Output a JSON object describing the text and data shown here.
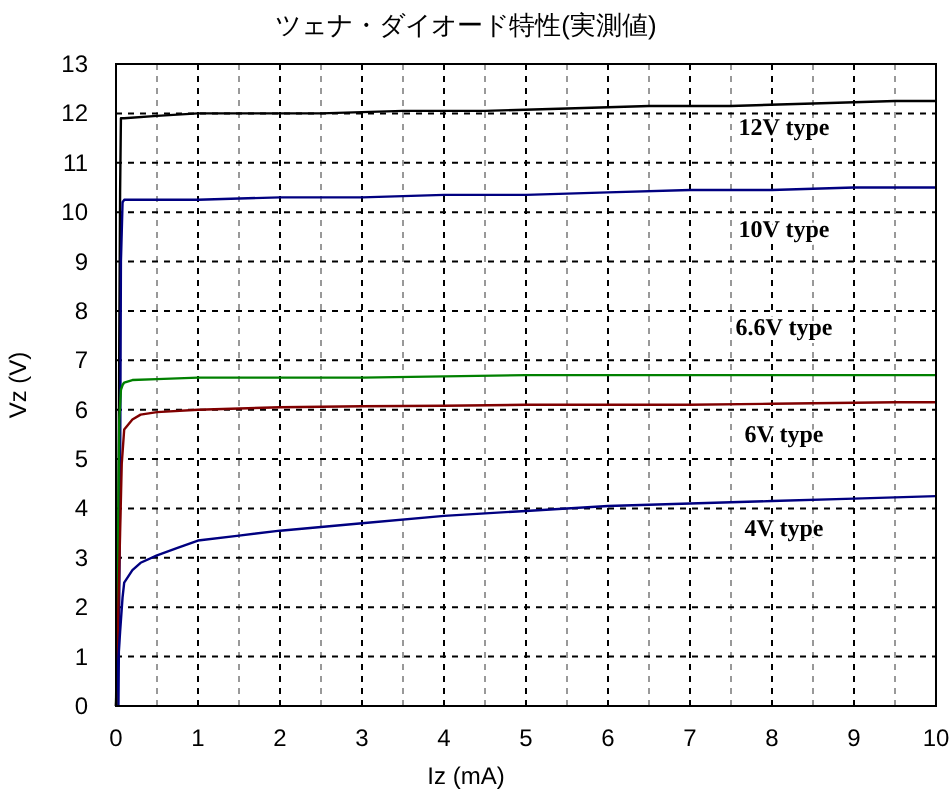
{
  "chart_data": {
    "type": "line",
    "title": "ツェナ・ダイオード特性(実測値)",
    "xlabel": "Iz (mA)",
    "ylabel": "Vz (V)",
    "xlim": [
      0,
      10
    ],
    "ylim": [
      0,
      13
    ],
    "xticks": [
      0,
      1,
      2,
      3,
      4,
      5,
      6,
      7,
      8,
      9,
      10
    ],
    "yticks": [
      0,
      1,
      2,
      3,
      4,
      5,
      6,
      7,
      8,
      9,
      10,
      11,
      12,
      13
    ],
    "grid": true,
    "marker": "none",
    "line_style": "solid",
    "series": [
      {
        "name": "12V type",
        "color": "#000000",
        "x": [
          0.02,
          0.04,
          0.05,
          0.06,
          0.08,
          0.1,
          0.5,
          1,
          1.5,
          2.5,
          3.5,
          4.5,
          5.5,
          6.5,
          7.5,
          8.5,
          9.5,
          10
        ],
        "values": [
          0,
          7.4,
          10.4,
          11.9,
          11.9,
          11.9,
          11.95,
          12.0,
          12.0,
          12.0,
          12.05,
          12.05,
          12.1,
          12.15,
          12.15,
          12.2,
          12.25,
          12.25
        ]
      },
      {
        "name": "10V type",
        "color": "#000080",
        "x": [
          0.03,
          0.05,
          0.06,
          0.08,
          0.1,
          1,
          2,
          3,
          4,
          5,
          6,
          7,
          8,
          9,
          10
        ],
        "values": [
          0,
          4.5,
          9,
          10.2,
          10.25,
          10.25,
          10.3,
          10.3,
          10.35,
          10.35,
          10.4,
          10.45,
          10.45,
          10.5,
          10.5
        ]
      },
      {
        "name": "6.6V type",
        "color": "#008000",
        "x": [
          0,
          0.02,
          0.04,
          0.06,
          0.08,
          0.1,
          0.2,
          0.5,
          1,
          2,
          3,
          5,
          7,
          10
        ],
        "values": [
          0,
          2.5,
          5.8,
          6.4,
          6.5,
          6.55,
          6.6,
          6.62,
          6.65,
          6.65,
          6.65,
          6.7,
          6.7,
          6.7
        ]
      },
      {
        "name": "6V type",
        "color": "#800000",
        "x": [
          0,
          0.03,
          0.05,
          0.07,
          0.1,
          0.2,
          0.3,
          0.5,
          1,
          2,
          3,
          4,
          5,
          7,
          8,
          9.5,
          10
        ],
        "values": [
          0,
          2.1,
          3.5,
          4.9,
          5.6,
          5.8,
          5.9,
          5.95,
          6.0,
          6.05,
          6.07,
          6.08,
          6.1,
          6.1,
          6.12,
          6.15,
          6.15
        ]
      },
      {
        "name": "4V type",
        "color": "#000080",
        "x": [
          0,
          0.03,
          0.05,
          0.08,
          0.1,
          0.2,
          0.3,
          0.5,
          0.75,
          1,
          1.5,
          2,
          3,
          4,
          5,
          6,
          7,
          8,
          9,
          10
        ],
        "values": [
          0,
          1,
          1.5,
          2.2,
          2.5,
          2.75,
          2.9,
          3.05,
          3.2,
          3.35,
          3.45,
          3.55,
          3.7,
          3.85,
          3.95,
          4.05,
          4.1,
          4.15,
          4.2,
          4.25
        ]
      }
    ]
  }
}
